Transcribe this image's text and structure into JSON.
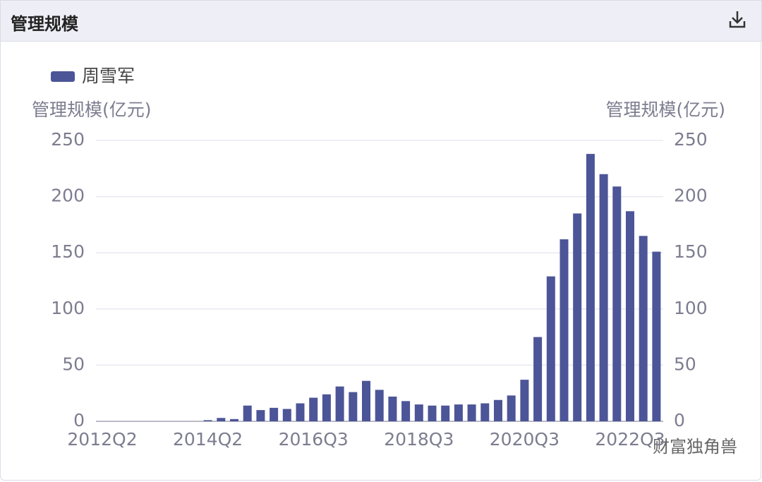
{
  "header": {
    "title": "管理规模"
  },
  "chart_data": {
    "type": "bar",
    "y_label": "管理规模(亿元)",
    "y2_label": "管理规模(亿元)",
    "categories": [
      "2012Q2",
      null,
      null,
      null,
      null,
      null,
      null,
      null,
      "2014Q2",
      null,
      null,
      null,
      null,
      null,
      null,
      null,
      "2016Q3",
      null,
      null,
      null,
      null,
      null,
      null,
      null,
      "2018Q3",
      null,
      null,
      null,
      null,
      null,
      null,
      null,
      "2020Q3",
      null,
      null,
      null,
      null,
      null,
      null,
      null,
      "2022Q3",
      null,
      null
    ],
    "series": [
      {
        "name": "周雪军",
        "color": "#4c5597",
        "values": [
          0,
          0,
          0,
          0,
          0,
          0,
          0,
          0,
          1,
          3,
          2,
          14,
          10,
          12,
          11,
          16,
          21,
          24,
          31,
          26,
          36,
          28,
          22,
          18,
          15,
          14,
          14,
          15,
          15,
          16,
          19,
          23,
          37,
          75,
          129,
          162,
          185,
          238,
          220,
          209,
          187,
          165,
          151
        ]
      }
    ],
    "ylim": [
      0,
      250
    ],
    "yticks": [
      0,
      50,
      100,
      150,
      200,
      250
    ],
    "y2lim": [
      0,
      250
    ],
    "y2ticks": [
      0,
      50,
      100,
      150,
      200,
      250
    ],
    "grid": true
  },
  "watermark": "财富独角兽"
}
